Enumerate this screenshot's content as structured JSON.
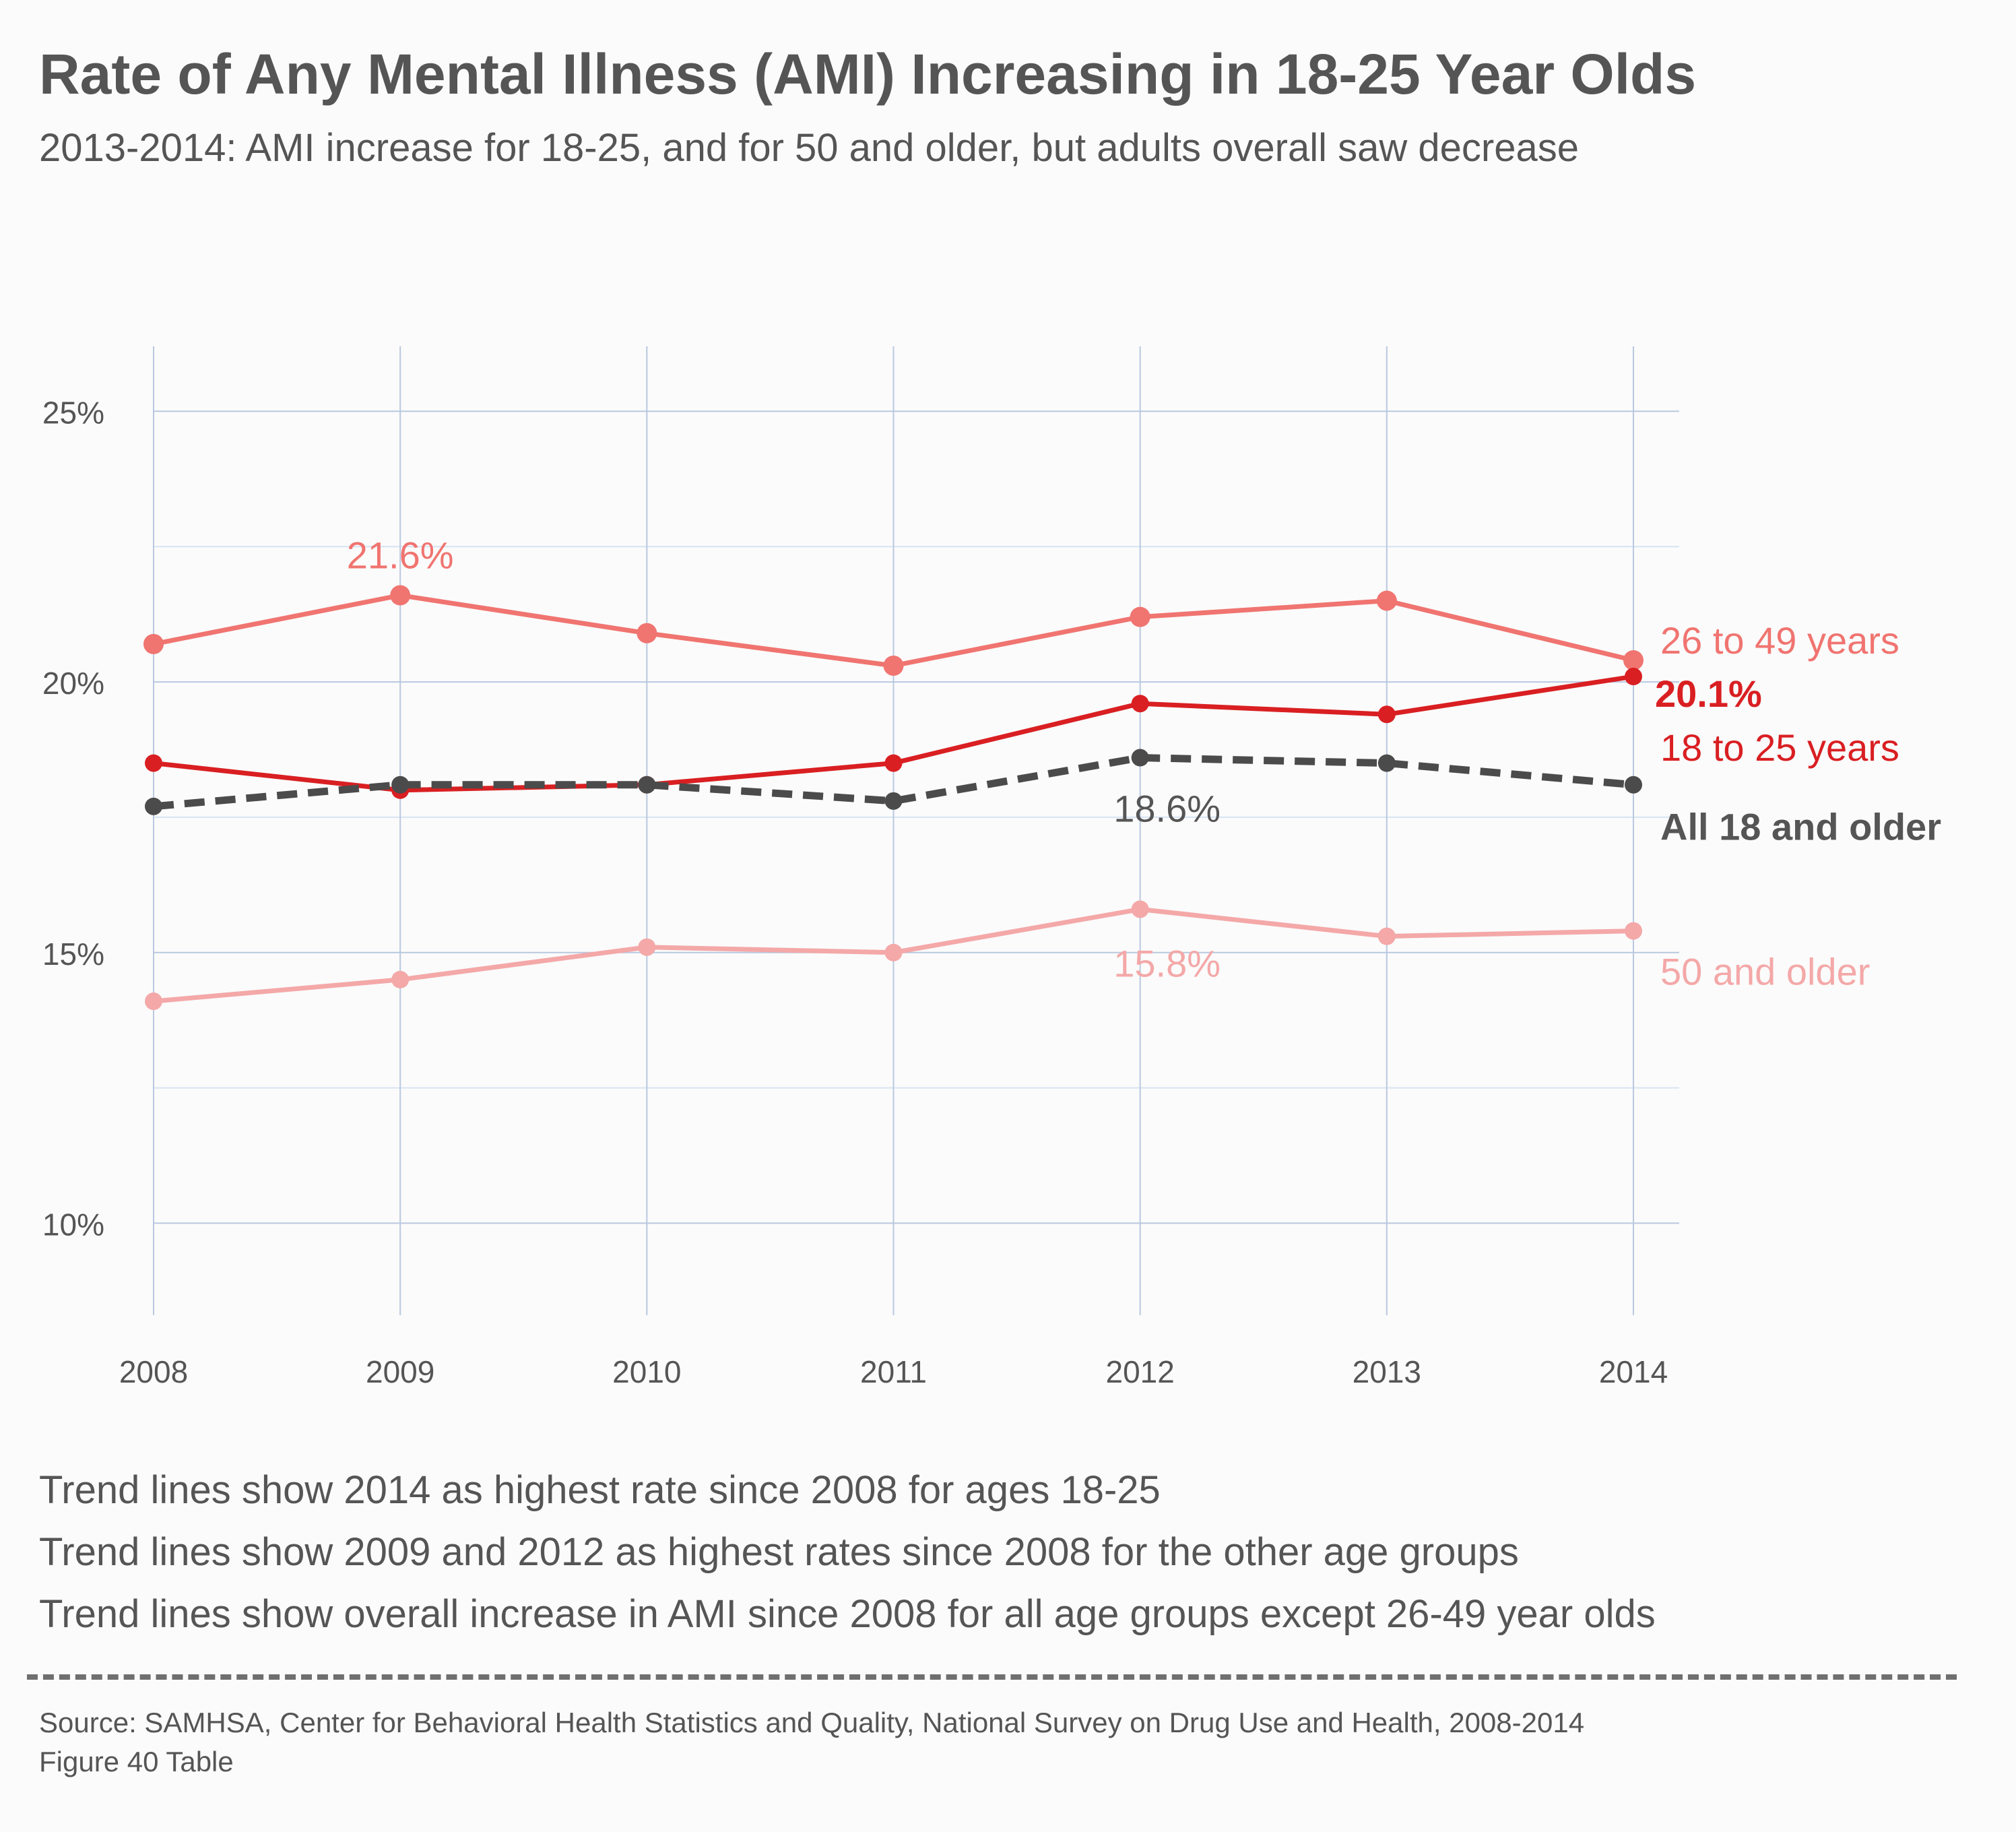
{
  "chart_data": {
    "type": "line",
    "title": "Rate of Any Mental Illness (AMI) Increasing in 18-25 Year Olds",
    "subtitle": "2013-2014: AMI increase for 18-25, and for 50 and older, but adults overall saw decrease",
    "xlabel": "",
    "ylabel": "",
    "categories": [
      "2008",
      "2009",
      "2010",
      "2011",
      "2012",
      "2013",
      "2014"
    ],
    "ylim": [
      8.3,
      26.2
    ],
    "yticks": [
      10,
      15,
      20,
      25
    ],
    "ytick_labels": [
      "10%",
      "15%",
      "20%",
      "25%"
    ],
    "grid": true,
    "legend": "direct labels at right end of lines",
    "series": [
      {
        "name": "26 to 49 years",
        "values": [
          20.7,
          21.6,
          20.9,
          20.3,
          21.2,
          21.5,
          20.4
        ],
        "color": "#f07470",
        "style": "solid"
      },
      {
        "name": "18 to 25 years",
        "values": [
          18.5,
          18.0,
          18.1,
          18.5,
          19.6,
          19.4,
          20.1
        ],
        "color": "#d91f22",
        "style": "solid"
      },
      {
        "name": "All 18 and older",
        "values": [
          17.7,
          18.1,
          18.1,
          17.8,
          18.6,
          18.5,
          18.1
        ],
        "color": "#4b4b4b",
        "style": "dashed"
      },
      {
        "name": "50 and older",
        "values": [
          14.1,
          14.5,
          15.1,
          15.0,
          15.8,
          15.3,
          15.4
        ],
        "color": "#f4a8a8",
        "style": "solid"
      }
    ],
    "annotations": [
      {
        "text": "21.6%",
        "series": 0,
        "index": 1
      },
      {
        "text": "20.1%",
        "series": 1,
        "index": 6
      },
      {
        "text": "18.6%",
        "series": 2,
        "index": 4
      },
      {
        "text": "15.8%",
        "series": 3,
        "index": 4
      }
    ]
  },
  "notes": [
    "Trend lines show 2014 as highest rate since 2008 for ages 18-25",
    "Trend lines show 2009 and 2012 as highest rates since 2008 for the other age groups",
    "Trend lines show overall increase in AMI since 2008 for all age groups except 26-49 year olds"
  ],
  "source": [
    "Source: SAMHSA, Center for Behavioral Health Statistics and Quality, National Survey on Drug Use and Health, 2008-2014",
    "Figure 40 Table"
  ],
  "colors": {
    "text": "#555555",
    "grid": "#b9c8e0",
    "minor_grid": "#d8e3f3",
    "background": "#fbfbfb"
  }
}
